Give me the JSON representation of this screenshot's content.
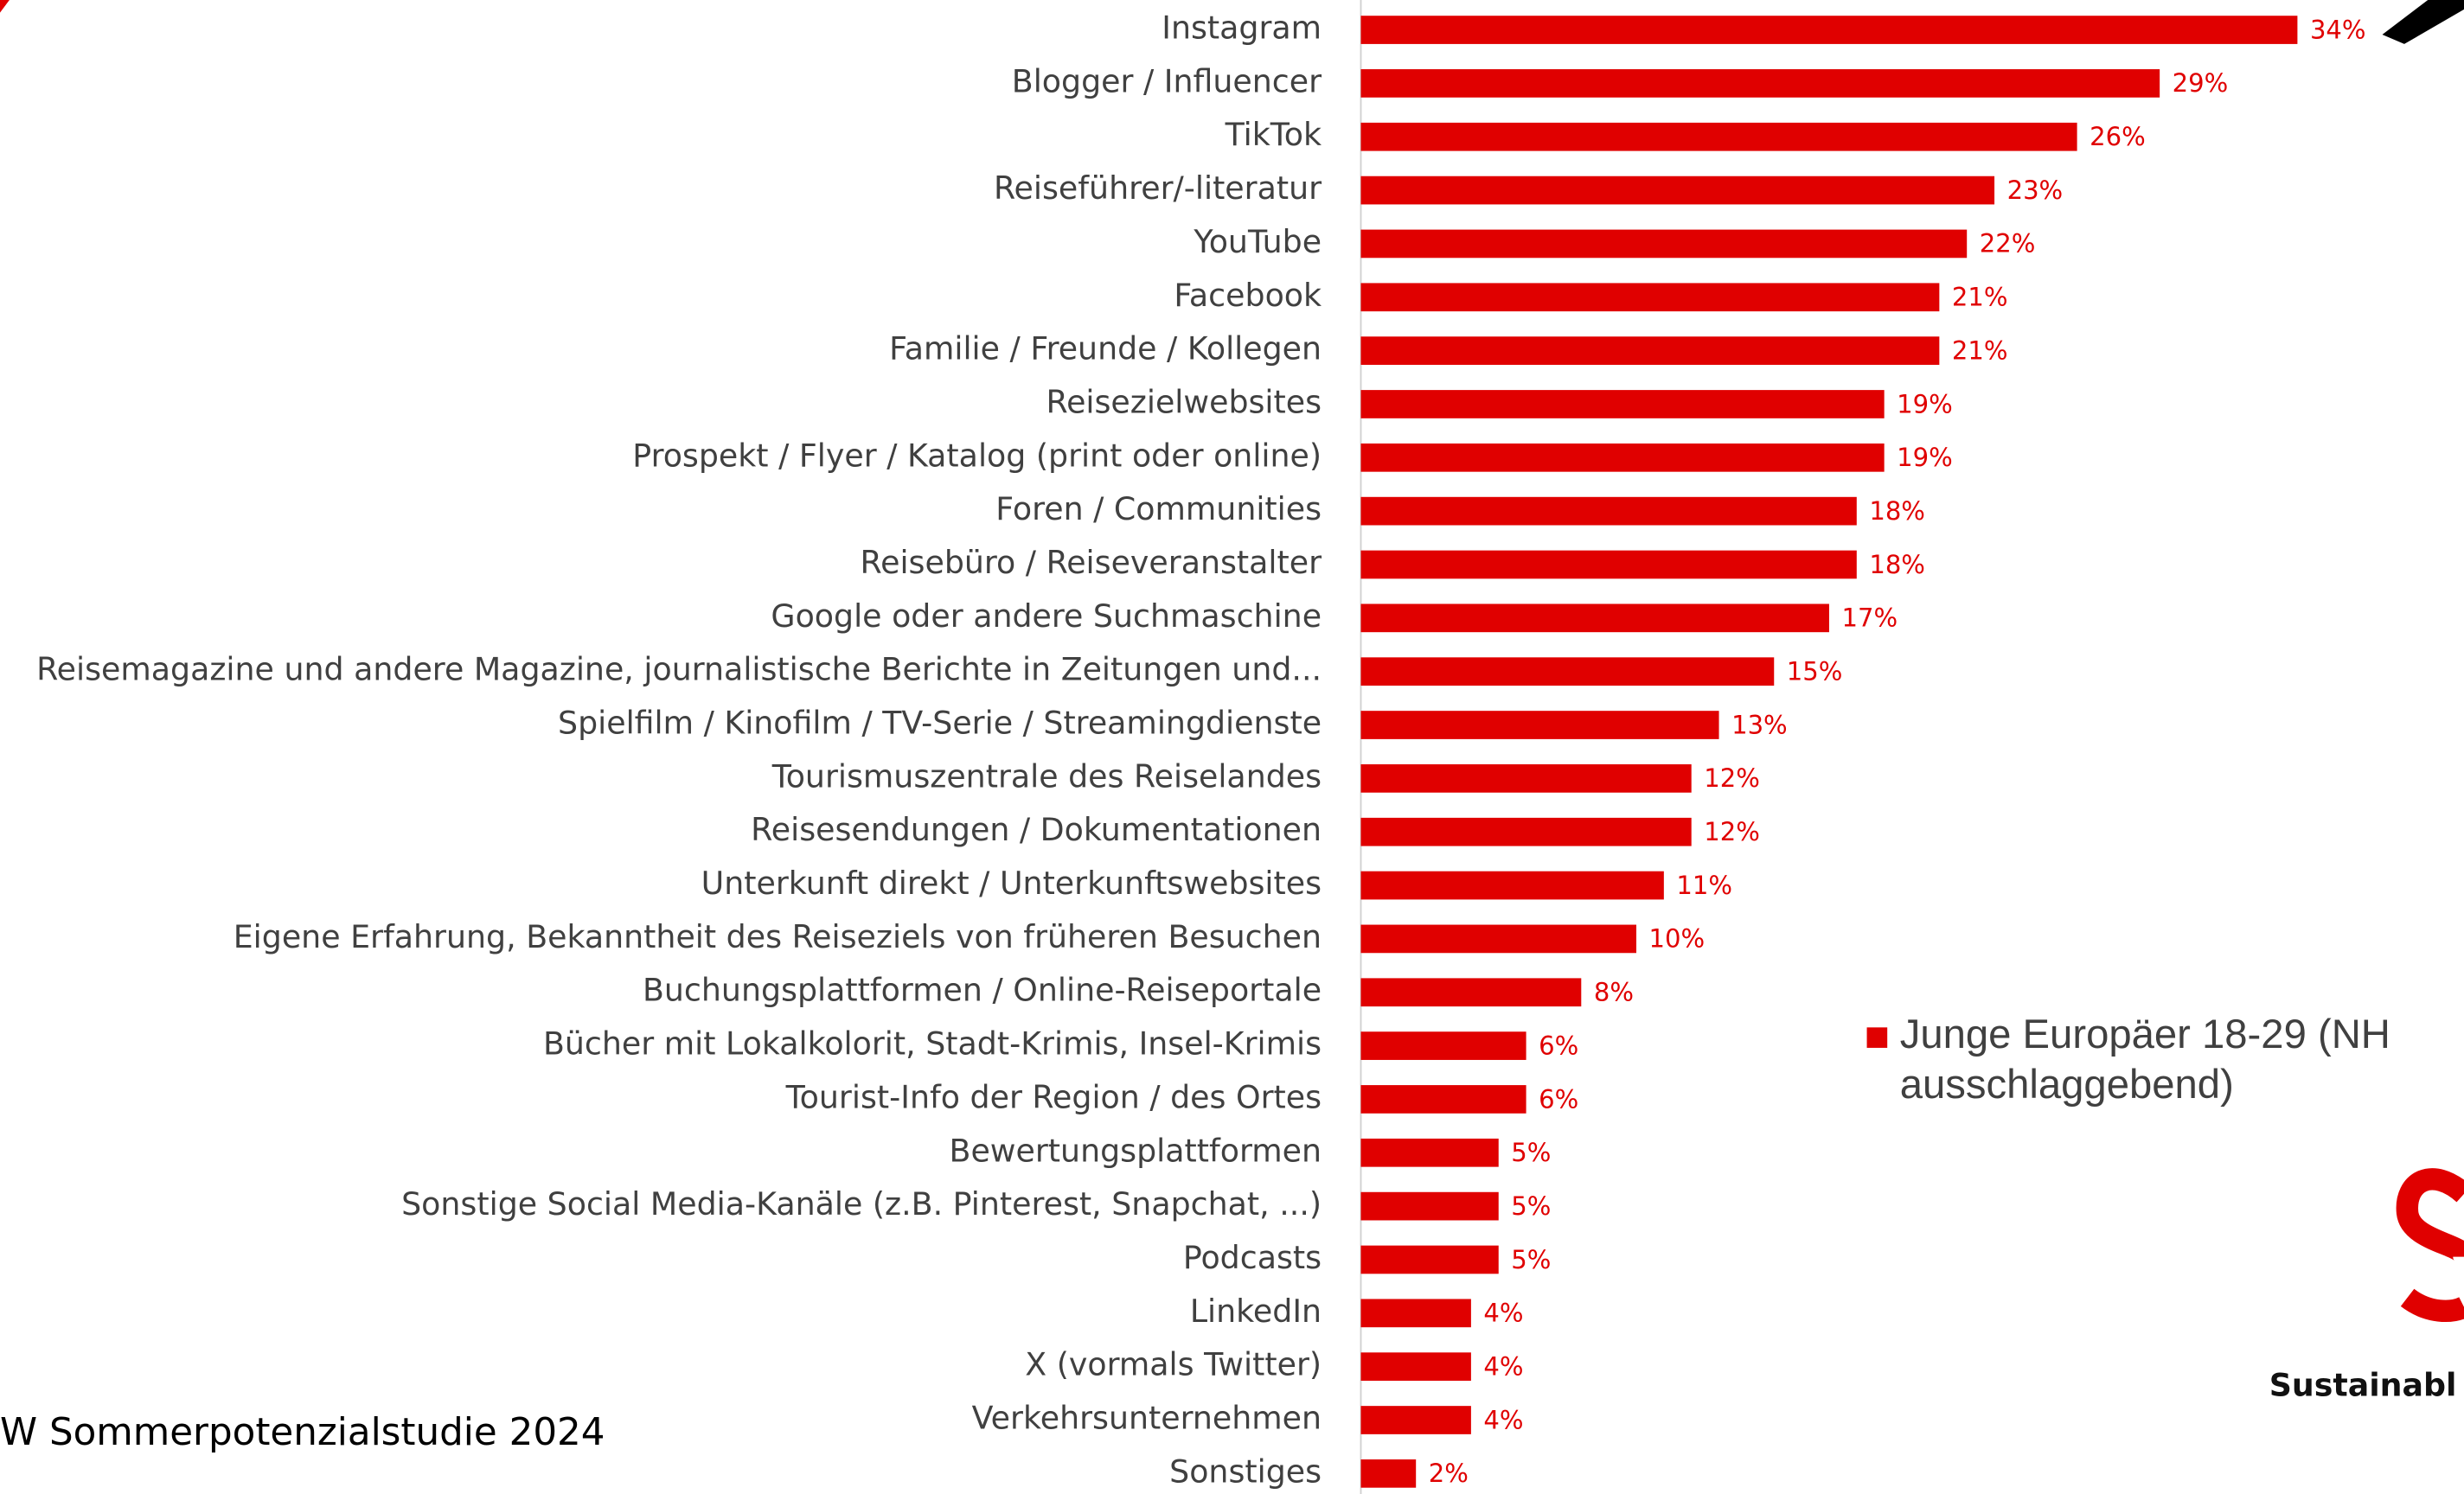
{
  "chart_data": {
    "type": "bar",
    "orientation": "horizontal",
    "categories": [
      "Instagram",
      "Blogger / Influencer",
      "TikTok",
      "Reiseführer/-literatur",
      "YouTube",
      "Facebook",
      "Familie / Freunde / Kollegen",
      "Reisezielwebsites",
      "Prospekt / Flyer / Katalog (print oder online)",
      "Foren / Communities",
      "Reisebüro / Reiseveranstalter",
      "Google oder andere Suchmaschine",
      "Reisemagazine und andere Magazine, journalistische Berichte in Zeitungen und...",
      "Spielfilm / Kinofilm / TV-Serie / Streamingdienste",
      "Tourismuszentrale des Reiselandes",
      "Reisesendungen / Dokumentationen",
      "Unterkunft direkt / Unterkunftswebsites",
      "Eigene Erfahrung, Bekanntheit des Reiseziels von früheren Besuchen",
      "Buchungsplattformen / Online-Reiseportale",
      "Bücher mit Lokalkolorit, Stadt-Krimis, Insel-Krimis",
      "Tourist-Info der Region / des Ortes",
      "Bewertungsplattformen",
      "Sonstige Social Media-Kanäle (z.B. Pinterest, Snapchat, ...)",
      "Podcasts",
      "LinkedIn",
      "X (vormals Twitter)",
      "Verkehrsunternehmen",
      "Sonstiges"
    ],
    "series": [
      {
        "name": "Junge Europäer 18-29 (NH ausschlaggebend)",
        "color": "#e00000",
        "values": [
          34,
          29,
          26,
          23,
          22,
          21,
          21,
          19,
          19,
          18,
          18,
          17,
          15,
          13,
          12,
          12,
          11,
          10,
          8,
          6,
          6,
          5,
          5,
          5,
          4,
          4,
          4,
          2
        ],
        "value_labels": [
          "34%",
          "29%",
          "26%",
          "23%",
          "22%",
          "21%",
          "21%",
          "19%",
          "19%",
          "18%",
          "18%",
          "17%",
          "15%",
          "13%",
          "12%",
          "12%",
          "11%",
          "10%",
          "8%",
          "6%",
          "6%",
          "5%",
          "5%",
          "5%",
          "4%",
          "4%",
          "4%",
          "2%"
        ]
      }
    ],
    "xlim": [
      0,
      34
    ],
    "source": "W Sommerpotenzialstudie 2024",
    "brand": "Sustainabl"
  }
}
